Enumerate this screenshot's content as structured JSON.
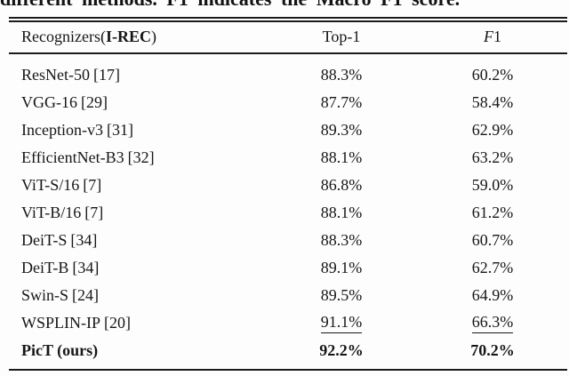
{
  "caption": {
    "visible_line": "different methods. F1 indicates the Macro F1 score."
  },
  "colors": {
    "text": "#161616",
    "rule": "#1b1b1b",
    "background": "#fdfdfd"
  },
  "table": {
    "header": {
      "col1_pre": "Recognizers(",
      "col1_bold": "I-REC",
      "col1_post": ")",
      "col2": "Top-1",
      "col3_italic": "F",
      "col3_num": "1"
    },
    "rows": [
      {
        "name": "ResNet-50",
        "cite": "[17]",
        "top1": "88.3%",
        "f1": "60.2%"
      },
      {
        "name": "VGG-16",
        "cite": "[29]",
        "top1": "87.7%",
        "f1": "58.4%"
      },
      {
        "name": "Inception-v3",
        "cite": "[31]",
        "top1": "89.3%",
        "f1": "62.9%"
      },
      {
        "name": "EfficientNet-B3",
        "cite": "[32]",
        "top1": "88.1%",
        "f1": "63.2%"
      },
      {
        "name": "ViT-S/16",
        "cite": "[7]",
        "top1": "86.8%",
        "f1": "59.0%"
      },
      {
        "name": "ViT-B/16",
        "cite": "[7]",
        "top1": "88.1%",
        "f1": "61.2%"
      },
      {
        "name": "DeiT-S",
        "cite": "[34]",
        "top1": "88.3%",
        "f1": "60.7%"
      },
      {
        "name": "DeiT-B",
        "cite": "[34]",
        "top1": "89.1%",
        "f1": "62.7%"
      },
      {
        "name": "Swin-S",
        "cite": "[24]",
        "top1": "89.5%",
        "f1": "64.9%"
      },
      {
        "name": "WSPLIN-IP",
        "cite": "[20]",
        "top1": "91.1%",
        "f1": "66.3%",
        "underline": true
      },
      {
        "name": "PicT (ours)",
        "cite": "",
        "top1": "92.2%",
        "f1": "70.2%",
        "bold": true
      }
    ]
  }
}
